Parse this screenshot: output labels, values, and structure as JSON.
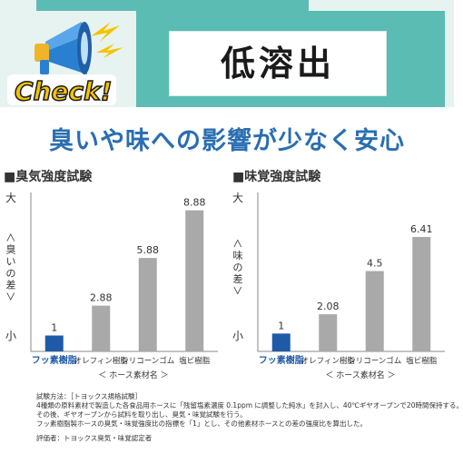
{
  "banner": {
    "title": "低溶出",
    "badge": "Check!"
  },
  "headline": "臭いや味への影響が少なく安心",
  "chart_data": [
    {
      "type": "bar",
      "title": "■臭気強度試験",
      "categories": [
        "フッ素樹脂",
        "オレフィン樹脂",
        "シリコーンゴム",
        "塩ビ樹脂"
      ],
      "values": [
        1,
        2.88,
        5.88,
        8.88
      ],
      "value_labels": [
        "1",
        "2.88",
        "5.88",
        "8.88"
      ],
      "ylim": [
        0,
        10
      ],
      "y_top_label": "大",
      "y_bottom_label": "小",
      "ylabel": "＜臭いの差＞",
      "xlabel": "＜ ホース素材名 ＞",
      "grid": false,
      "highlight_index": 0,
      "colors": {
        "highlight": "#1f5aa8",
        "normal": "#a9a9a9"
      }
    },
    {
      "type": "bar",
      "title": "■味覚強度試験",
      "categories": [
        "フッ素樹脂",
        "オレフィン樹脂",
        "シリコーンゴム",
        "塩ビ樹脂"
      ],
      "values": [
        1,
        2.08,
        4.5,
        6.41
      ],
      "value_labels": [
        "1",
        "2.08",
        "4.5",
        "6.41"
      ],
      "ylim": [
        0,
        8.9
      ],
      "y_top_label": "大",
      "y_bottom_label": "小",
      "ylabel": "＜味の差＞",
      "xlabel": "＜ ホース素材名 ＞",
      "grid": false,
      "highlight_index": 0,
      "colors": {
        "highlight": "#1f5aa8",
        "normal": "#a9a9a9"
      }
    }
  ],
  "notes": {
    "lines": [
      "試験方法：［トヨックス規格試験］",
      "4種類の原料素材で製造した各食品用ホースに「残留塩素濃度 0.1ppm に調整した純水」を封入し、40℃ギヤオーブンで20時間保持する。",
      "その後、ギヤオーブンから試料を取り出し、臭気・味覚試験を行う。",
      "フッ素樹脂製ホースの臭気・味覚強度比の指標を「1」とし、その他素材ホースとの差の強度比を算出した。"
    ],
    "evaluator": "評価者：トヨックス臭気・味覚認定者"
  }
}
